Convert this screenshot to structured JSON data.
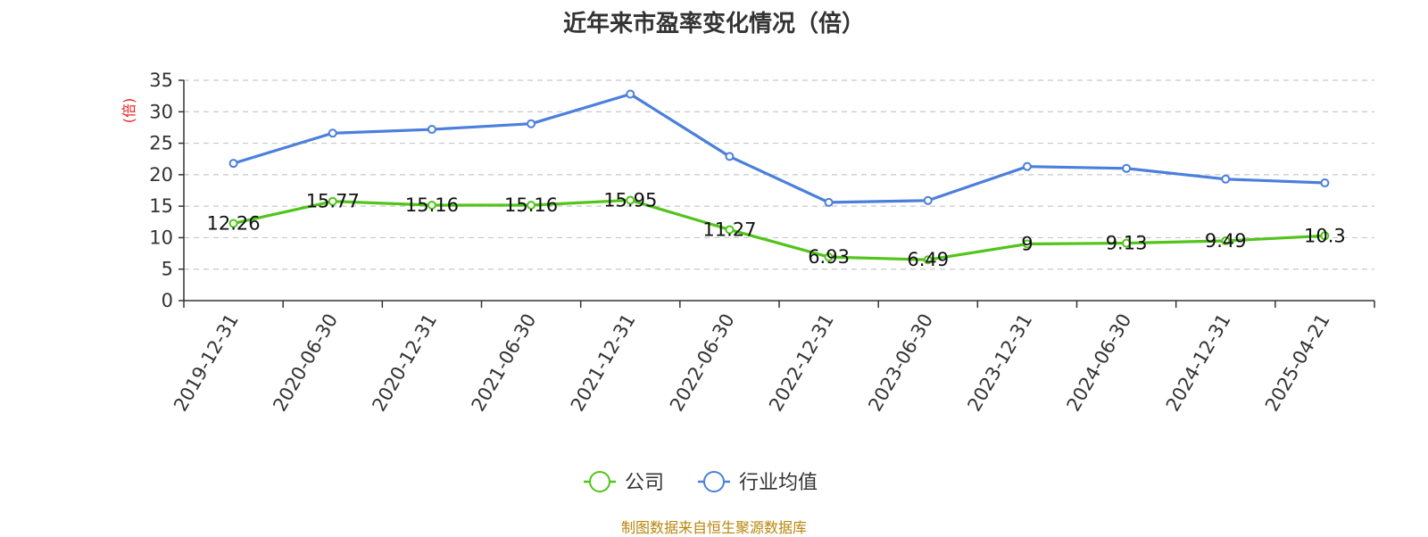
{
  "title": "近年来市盈率变化情况（倍）",
  "source": "制图数据来自恒生聚源数据库",
  "chart_data": {
    "type": "line",
    "title": "近年来市盈率变化情况（倍）",
    "ylabel": "(倍)",
    "ylim": [
      0,
      35
    ],
    "yticks": [
      0,
      5,
      10,
      15,
      20,
      25,
      30,
      35
    ],
    "grid": true,
    "legend_position": "bottom-center",
    "categories": [
      "2019-12-31",
      "2020-06-30",
      "2020-12-31",
      "2021-06-30",
      "2021-12-31",
      "2022-06-30",
      "2022-12-31",
      "2023-06-30",
      "2023-12-31",
      "2024-06-30",
      "2024-12-31",
      "2025-04-21"
    ],
    "series": [
      {
        "name": "公司",
        "color": "#52c41a",
        "values": [
          12.26,
          15.77,
          15.16,
          15.16,
          15.95,
          11.27,
          6.93,
          6.49,
          9,
          9.13,
          9.49,
          10.3
        ],
        "labels": [
          "12.26",
          "15.77",
          "15.16",
          "15.16",
          "15.95",
          "11.27",
          "6.93",
          "6.49",
          "9",
          "9.13",
          "9.49",
          "10.3"
        ]
      },
      {
        "name": "行业均值",
        "color": "#4a7fdc",
        "values": [
          21.8,
          26.6,
          27.2,
          28.1,
          32.8,
          22.9,
          15.6,
          15.9,
          21.3,
          21.0,
          19.3,
          18.7
        ]
      }
    ]
  }
}
